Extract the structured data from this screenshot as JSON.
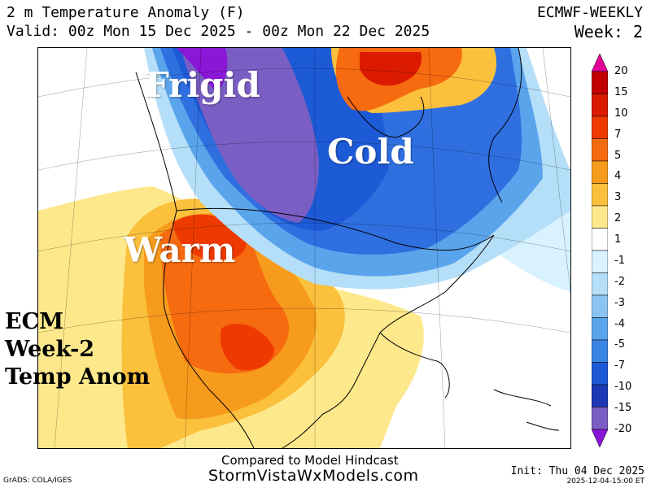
{
  "header": {
    "title": "2 m Temperature Anomaly (F)",
    "valid": "Valid: 00z Mon 15 Dec 2025 - 00z Mon 22 Dec 2025",
    "model": "ECMWF-WEEKLY",
    "week": "Week: 2"
  },
  "labels": {
    "frigid": "Frigid",
    "cold": "Cold",
    "warm": "Warm"
  },
  "corner_label": [
    "ECM",
    "Week-2",
    "Temp Anom"
  ],
  "scale": {
    "ticks": [
      "20",
      "15",
      "10",
      "7",
      "5",
      "4",
      "3",
      "2",
      "1",
      "-1",
      "-2",
      "-3",
      "-4",
      "-5",
      "-7",
      "-10",
      "-15",
      "-20"
    ],
    "colors": [
      "#e20097",
      "#c10000",
      "#db1a00",
      "#ee3a00",
      "#f66a10",
      "#f79b1c",
      "#fbc03c",
      "#fde98c",
      "#ffffff",
      "#d8f2ff",
      "#b5def8",
      "#8ac4f2",
      "#5aa4ec",
      "#3a84e4",
      "#1d5ad6",
      "#1d38b4",
      "#7a5ec4",
      "#8a16d6"
    ]
  },
  "colors": {
    "frigid_core": "#8a5ac8",
    "deep_blue": "#2f6fe0",
    "mid_blue": "#5aa4ec",
    "light_blue": "#b5def8",
    "warm_core": "#ee3a00",
    "orange": "#f79b1c",
    "yellow": "#fde98c",
    "land_outline": "#000000"
  },
  "footer": {
    "compared": "Compared to Model Hindcast",
    "site": "StormVistaWxModels.com",
    "grads": "GrADS: COLA/IGES",
    "init": "Init: Thu 04 Dec 2025",
    "stamp": "2025-12-04-15:00 ET"
  }
}
